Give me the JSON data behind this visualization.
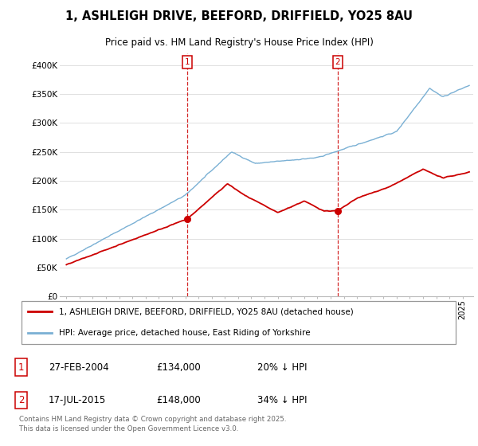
{
  "title_line1": "1, ASHLEIGH DRIVE, BEEFORD, DRIFFIELD, YO25 8AU",
  "title_line2": "Price paid vs. HM Land Registry's House Price Index (HPI)",
  "ylim": [
    0,
    420000
  ],
  "yticks": [
    0,
    50000,
    100000,
    150000,
    200000,
    250000,
    300000,
    350000,
    400000
  ],
  "ytick_labels": [
    "£0",
    "£50K",
    "£100K",
    "£150K",
    "£200K",
    "£250K",
    "£300K",
    "£350K",
    "£400K"
  ],
  "red_color": "#cc0000",
  "blue_color": "#7ab0d4",
  "marker1_x": 2004.15,
  "marker1_y": 134000,
  "marker2_x": 2015.54,
  "marker2_y": 148000,
  "legend_line1": "1, ASHLEIGH DRIVE, BEEFORD, DRIFFIELD, YO25 8AU (detached house)",
  "legend_line2": "HPI: Average price, detached house, East Riding of Yorkshire",
  "table_row1": [
    "1",
    "27-FEB-2004",
    "£134,000",
    "20% ↓ HPI"
  ],
  "table_row2": [
    "2",
    "17-JUL-2015",
    "£148,000",
    "34% ↓ HPI"
  ],
  "footnote": "Contains HM Land Registry data © Crown copyright and database right 2025.\nThis data is licensed under the Open Government Licence v3.0.",
  "background_color": "#ffffff",
  "grid_color": "#e0e0e0",
  "xlim_left": 1994.5,
  "xlim_right": 2025.8
}
